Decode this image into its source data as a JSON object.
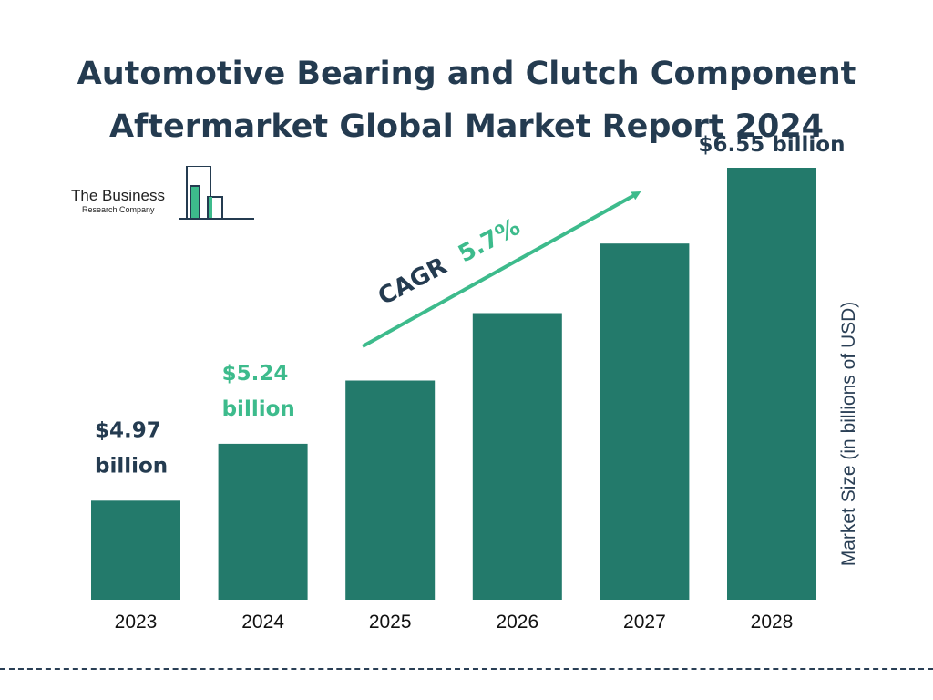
{
  "title_lines": [
    "Automotive Bearing and Clutch Component",
    "Aftermarket Global Market Report 2024"
  ],
  "logo": {
    "name": "The Business",
    "sub": "Research Company"
  },
  "colors": {
    "bar": "#237a6b",
    "accent": "#3dbb8c",
    "dark": "#243b50"
  },
  "chart_data": {
    "type": "bar",
    "title": "Automotive Bearing and Clutch Component Aftermarket Global Market Report 2024",
    "categories": [
      "2023",
      "2024",
      "2025",
      "2026",
      "2027",
      "2028"
    ],
    "values": [
      4.97,
      5.24,
      5.54,
      5.86,
      6.19,
      6.55
    ],
    "ylabel": "Market Size (in billions of USD)",
    "xlabel": "",
    "data_labels": [
      {
        "index": 0,
        "lines": [
          "$4.97",
          "billion"
        ]
      },
      {
        "index": 1,
        "lines": [
          "$5.24",
          "billion"
        ]
      },
      {
        "index": 5,
        "lines": [
          "$6.55 billion"
        ]
      }
    ],
    "annotation": {
      "label": "CAGR",
      "value": "5.7%"
    }
  }
}
